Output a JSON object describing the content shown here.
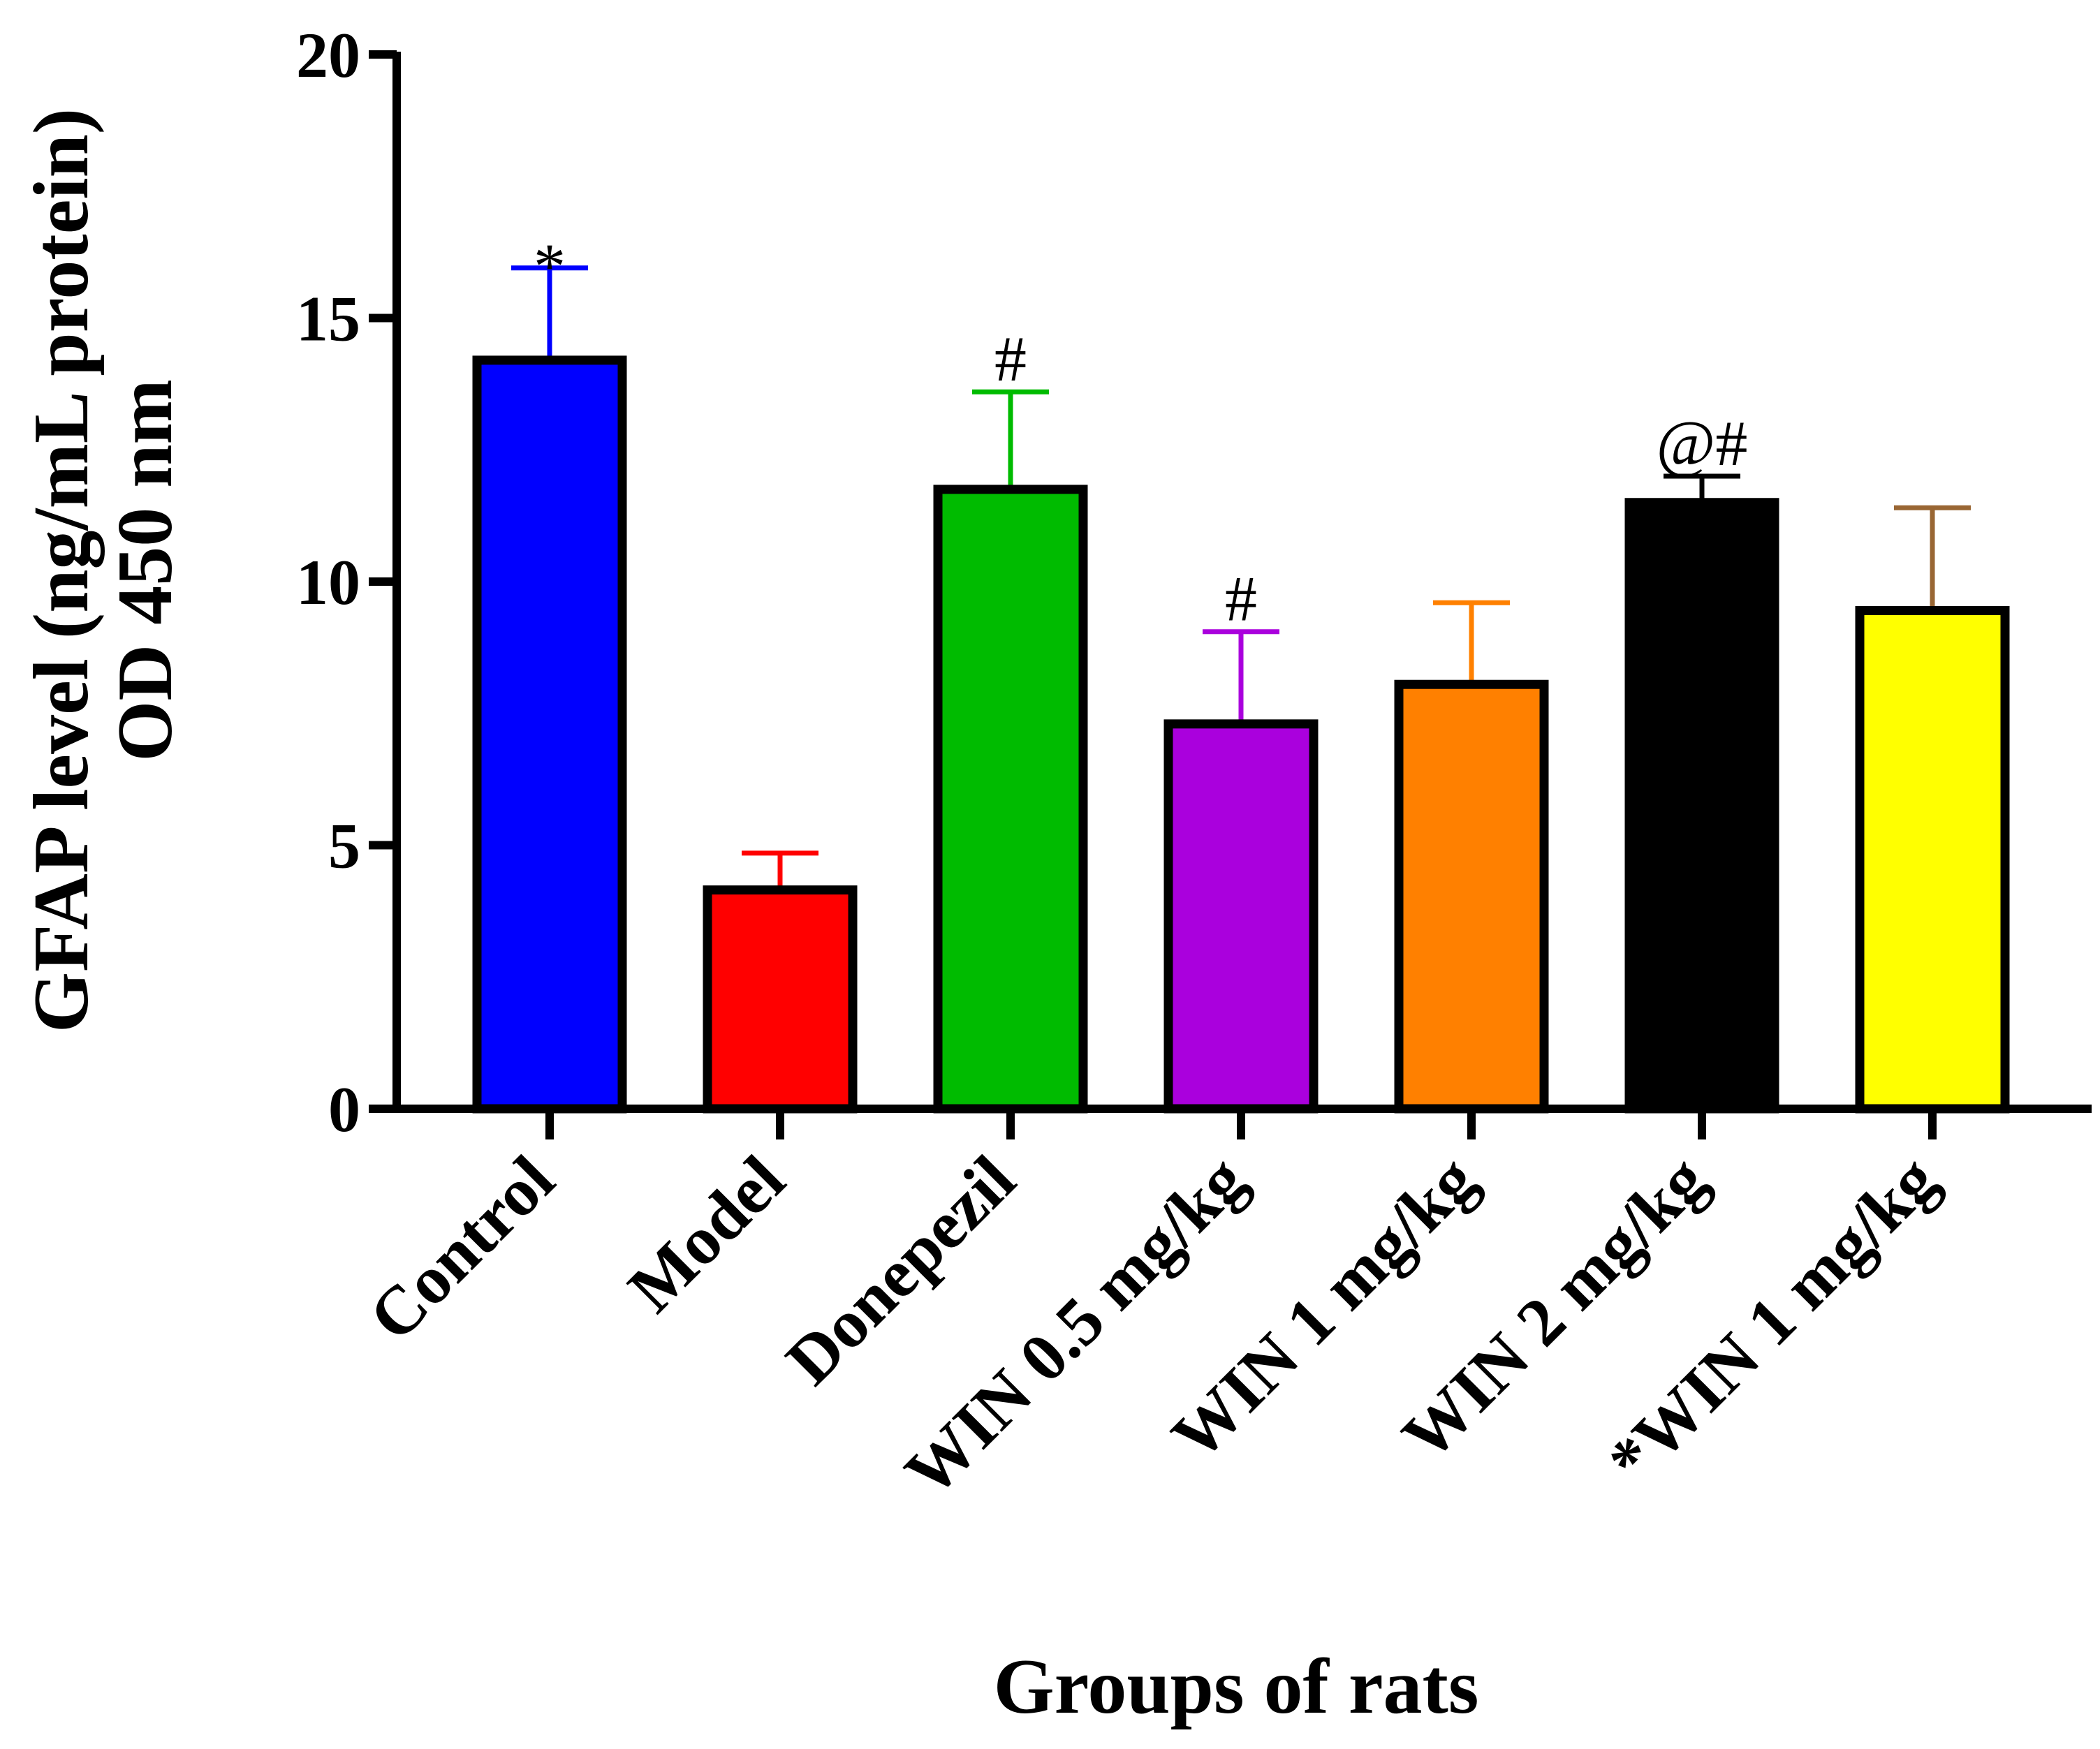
{
  "chart_data": {
    "type": "bar",
    "title": "",
    "xlabel": "Groups of rats",
    "ylabel_line1": "GFAP level (ng/mL protein)",
    "ylabel_line2": "OD 450 nm",
    "ylim": [
      0,
      20
    ],
    "yticks": [
      0,
      5,
      10,
      15,
      20
    ],
    "ytick_labels": [
      "0",
      "5",
      "10",
      "15",
      "20"
    ],
    "grid": false,
    "legend": "none",
    "categories": [
      "Control",
      "Model",
      "Donepezil",
      "WIN 0.5 mg/kg",
      "WIN 1 mg/kg",
      "WIN 2 mg/kg",
      "*WIN 1 mg/kg"
    ],
    "values": [
      14.2,
      4.15,
      11.75,
      7.3,
      8.05,
      11.5,
      9.45
    ],
    "errors": [
      1.75,
      0.7,
      1.85,
      1.75,
      1.55,
      0.5,
      1.95
    ],
    "bar_colors": [
      "#0000ff",
      "#ff0000",
      "#00bb00",
      "#aa00dd",
      "#ff8000",
      "#000000",
      "#ffff00"
    ],
    "error_colors": [
      "#0000ff",
      "#ff0000",
      "#00bb00",
      "#aa00dd",
      "#ff8000",
      "#000000",
      "#996633"
    ],
    "significance": [
      "*",
      "",
      "#",
      "#",
      "",
      "@#",
      ""
    ]
  }
}
